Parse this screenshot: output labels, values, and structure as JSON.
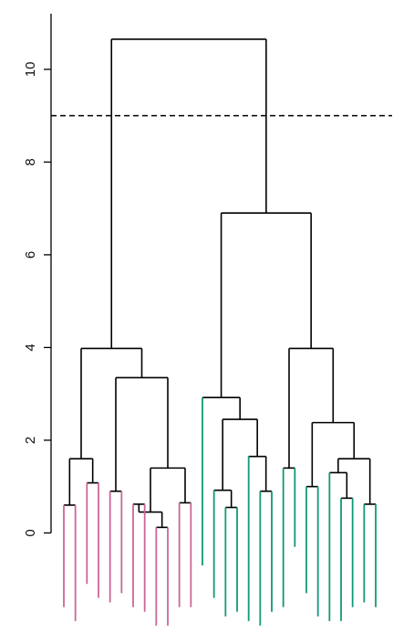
{
  "chart_data": {
    "type": "dendrogram",
    "title": "",
    "xlabel": "",
    "ylabel": "",
    "ylim": [
      -2.1,
      11.2
    ],
    "yticks": [
      0,
      2,
      4,
      6,
      8,
      10
    ],
    "ytick_labels": [
      "0",
      "2",
      "4",
      "6",
      "8",
      "10"
    ],
    "cut_height": 9.0,
    "cut_style": "dashed",
    "leaf_bottoms": [
      -1.6,
      -1.9,
      -1.1,
      -1.4,
      -1.5,
      -1.3,
      -1.6,
      -1.7,
      -2.0,
      -2.0,
      -1.6,
      -1.6,
      -0.7,
      -1.4,
      -1.8,
      -1.7,
      -1.9,
      -2.0,
      -1.7,
      -1.6,
      -0.3,
      -1.3,
      -1.8,
      -1.9,
      -1.9,
      -1.6,
      -1.5,
      -1.6
    ],
    "leaf_colors": [
      "#cc6699",
      "#cc6699",
      "#cc6699",
      "#cc6699",
      "#cc6699",
      "#cc6699",
      "#cc6699",
      "#cc6699",
      "#cc6699",
      "#cc6699",
      "#cc6699",
      "#cc6699",
      "#119977",
      "#119977",
      "#119977",
      "#119977",
      "#119977",
      "#119977",
      "#119977",
      "#119977",
      "#119977",
      "#119977",
      "#119977",
      "#119977",
      "#119977",
      "#119977",
      "#119977",
      "#119977"
    ],
    "merges": [
      [
        -1,
        -2,
        0.6
      ],
      [
        -5,
        -6,
        0.9
      ],
      [
        -7,
        -8,
        0.6
      ],
      [
        -9,
        -10,
        0.1
      ],
      [
        -11,
        -12,
        0.65
      ],
      [
        -3,
        -4,
        1.08
      ],
      [
        4,
        5,
        1.4
      ],
      [
        3,
        7,
        2.3
      ],
      [
        2,
        8,
        3.35
      ],
      [
        1,
        6,
        1.6
      ],
      [
        10,
        9,
        3.98
      ],
      [
        -14,
        -15,
        0.9
      ],
      [
        -17,
        -18,
        0.9
      ],
      [
        -26,
        -27,
        0.68
      ],
      [
        -23,
        -24,
        0.75
      ],
      [
        -19,
        -20,
        1.4
      ],
      [
        -21,
        -22,
        1.0
      ],
      [
        -25,
        14,
        1.6
      ],
      [
        -16,
        13,
        1.65
      ],
      [
        12,
        -13,
        1.5
      ],
      [
        20,
        19,
        2.45
      ],
      [
        -11,
        -11,
        0.0
      ],
      [
        17,
        15,
        1.9
      ],
      [
        23,
        18,
        2.38
      ],
      [
        24,
        16,
        3.68
      ],
      [
        21,
        25,
        3.98
      ],
      [
        -28,
        26,
        2.92
      ],
      [
        11,
        27,
        10.65
      ]
    ]
  }
}
